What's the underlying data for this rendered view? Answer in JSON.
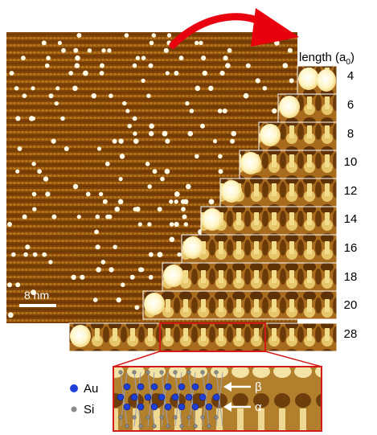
{
  "header": {
    "length_label": "length (a",
    "length_sub": "0",
    "length_close": ")"
  },
  "scale_bar": {
    "label": "8 nm"
  },
  "strips": [
    {
      "length": "4"
    },
    {
      "length": "6"
    },
    {
      "length": "8"
    },
    {
      "length": "10"
    },
    {
      "length": "12"
    },
    {
      "length": "14"
    },
    {
      "length": "16"
    },
    {
      "length": "18"
    },
    {
      "length": "20"
    },
    {
      "length": "28"
    }
  ],
  "legend": {
    "au": {
      "label": "Au",
      "color": "#1f3fd6"
    },
    "si": {
      "label": "Si",
      "color": "#8a8a8a"
    }
  },
  "inset": {
    "beta_label": "β",
    "alpha_label": "α"
  },
  "colors": {
    "arrow": "#e8000f",
    "highlight_box": "#d61a1a",
    "stm_dark": "#5a2a00",
    "stm_bright": "#fff8d0"
  }
}
